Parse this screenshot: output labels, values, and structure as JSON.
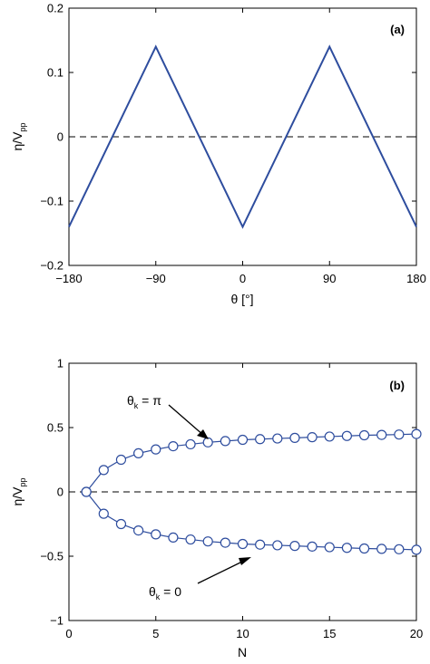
{
  "chart_data": [
    {
      "type": "line",
      "panel_label": "(a)",
      "xlabel_symbol": "θ",
      "xlabel_unit": "[°]",
      "ylabel_main": "η/V",
      "ylabel_sub": "pp",
      "xlim": [
        -180,
        180
      ],
      "ylim": [
        -0.2,
        0.2
      ],
      "xticks": [
        -180,
        -90,
        0,
        90,
        180
      ],
      "xtick_labels": [
        "−180",
        "−90",
        "0",
        "90",
        "180"
      ],
      "yticks": [
        -0.2,
        -0.1,
        0,
        0.1,
        0.2
      ],
      "ytick_labels": [
        "−0.2",
        "−0.1",
        "0",
        "0.1",
        "0.2"
      ],
      "reference_line": 0,
      "series": [
        {
          "x": [
            -180,
            -90,
            0,
            90,
            180
          ],
          "y": [
            -0.14,
            0.14,
            -0.14,
            0.14,
            -0.14
          ]
        }
      ],
      "color": "#2e4d9e"
    },
    {
      "type": "line",
      "panel_label": "(b)",
      "xlabel": "N",
      "ylabel_main": "η/V",
      "ylabel_sub": "pp",
      "xlim": [
        0,
        20
      ],
      "ylim": [
        -1,
        1
      ],
      "xticks": [
        0,
        5,
        10,
        15,
        20
      ],
      "xtick_labels": [
        "0",
        "5",
        "10",
        "15",
        "20"
      ],
      "yticks": [
        -1,
        -0.5,
        0,
        0.5,
        1
      ],
      "ytick_labels": [
        "−1",
        "−0.5",
        "0",
        "0.5",
        "1"
      ],
      "reference_line": 0,
      "series": [
        {
          "name": "θk = π",
          "x": [
            1,
            2,
            3,
            4,
            5,
            6,
            7,
            8,
            9,
            10,
            11,
            12,
            13,
            14,
            15,
            16,
            17,
            18,
            19,
            20
          ],
          "y": [
            0,
            0.17,
            0.25,
            0.3,
            0.33,
            0.355,
            0.37,
            0.385,
            0.395,
            0.405,
            0.41,
            0.415,
            0.42,
            0.425,
            0.43,
            0.435,
            0.44,
            0.443,
            0.446,
            0.45
          ]
        },
        {
          "name": "θk = 0",
          "x": [
            1,
            2,
            3,
            4,
            5,
            6,
            7,
            8,
            9,
            10,
            11,
            12,
            13,
            14,
            15,
            16,
            17,
            18,
            19,
            20
          ],
          "y": [
            0,
            -0.17,
            -0.25,
            -0.3,
            -0.33,
            -0.355,
            -0.37,
            -0.385,
            -0.395,
            -0.405,
            -0.41,
            -0.415,
            -0.42,
            -0.425,
            -0.43,
            -0.435,
            -0.44,
            -0.443,
            -0.446,
            -0.45
          ]
        }
      ],
      "annotations": [
        {
          "symbol": "θ",
          "sub": "k",
          "rest": " = π",
          "points_to_series": 0,
          "target_x": 8
        },
        {
          "symbol": "θ",
          "sub": "k",
          "rest": " = 0",
          "points_to_series": 1,
          "target_x": 11
        }
      ],
      "color": "#2e4d9e"
    }
  ]
}
